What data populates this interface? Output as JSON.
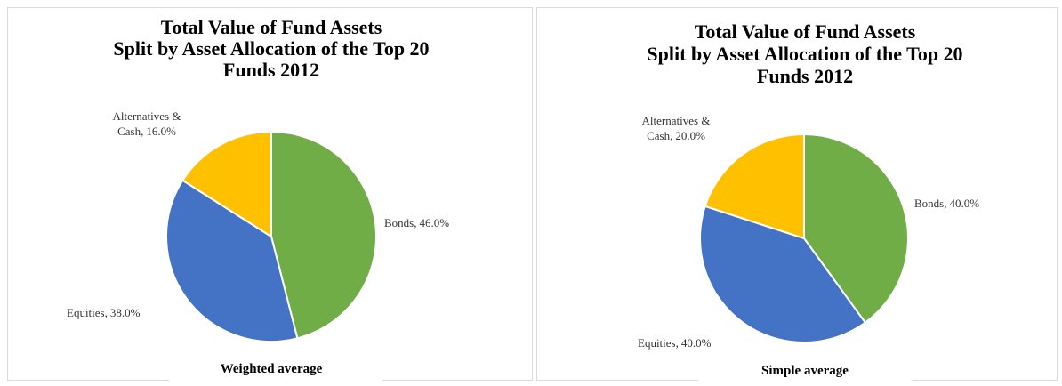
{
  "chart_data": [
    {
      "type": "pie",
      "title": [
        "Total Value of Fund Assets",
        "Split by Asset Allocation of the Top 20",
        "Funds 2012"
      ],
      "subtitle": "Weighted average",
      "categories": [
        "Bonds",
        "Equities",
        "Alternatives & Cash"
      ],
      "values": [
        46.0,
        38.0,
        16.0
      ],
      "value_labels": [
        "46.0%",
        "38.0%",
        "16.0%"
      ],
      "colors": [
        "#70ad47",
        "#4472c4",
        "#ffc000"
      ]
    },
    {
      "type": "pie",
      "title": [
        "Total Value of Fund Assets",
        "Split by Asset Allocation of the Top 20",
        "Funds 2012"
      ],
      "subtitle": "Simple average",
      "categories": [
        "Bonds",
        "Equities",
        "Alternatives & Cash"
      ],
      "values": [
        40.0,
        40.0,
        20.0
      ],
      "value_labels": [
        "40.0%",
        "40.0%",
        "20.0%"
      ],
      "colors": [
        "#70ad47",
        "#4472c4",
        "#ffc000"
      ]
    }
  ]
}
